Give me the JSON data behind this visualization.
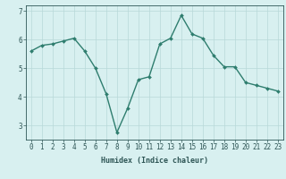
{
  "x": [
    0,
    1,
    2,
    3,
    4,
    5,
    6,
    7,
    8,
    9,
    10,
    11,
    12,
    13,
    14,
    15,
    16,
    17,
    18,
    19,
    20,
    21,
    22,
    23
  ],
  "y": [
    5.6,
    5.8,
    5.85,
    5.95,
    6.05,
    5.6,
    5.0,
    4.1,
    2.75,
    3.6,
    4.6,
    4.7,
    5.85,
    6.05,
    6.85,
    6.2,
    6.05,
    5.45,
    5.05,
    5.05,
    4.5,
    4.4,
    4.3,
    4.2
  ],
  "line_color": "#2e7d6e",
  "marker": "D",
  "marker_size": 2.0,
  "bg_color": "#d8f0f0",
  "grid_color": "#b8d8d8",
  "tick_color": "#2e5555",
  "xlabel": "Humidex (Indice chaleur)",
  "xlim": [
    -0.5,
    23.5
  ],
  "ylim": [
    2.5,
    7.2
  ],
  "yticks": [
    3,
    4,
    5,
    6,
    7
  ],
  "xticks": [
    0,
    1,
    2,
    3,
    4,
    5,
    6,
    7,
    8,
    9,
    10,
    11,
    12,
    13,
    14,
    15,
    16,
    17,
    18,
    19,
    20,
    21,
    22,
    23
  ],
  "xlabel_fontsize": 6.0,
  "tick_fontsize": 5.5,
  "line_width": 1.0
}
